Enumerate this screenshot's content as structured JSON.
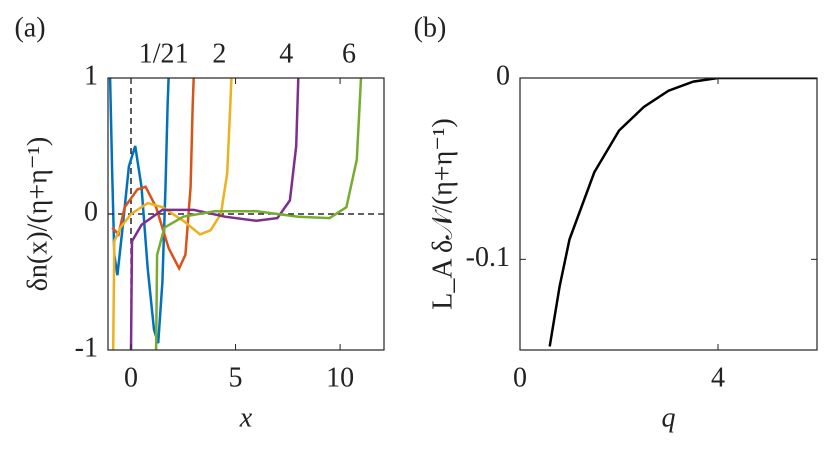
{
  "chart_data": [
    {
      "type": "line",
      "panel_label": "(a)",
      "x_label": "x",
      "y_label": "δn(x)/(η+η⁻¹)",
      "xlim": [
        -1.1,
        12.1
      ],
      "ylim": [
        -1,
        1
      ],
      "xticks": [
        0,
        5,
        10
      ],
      "yticks": [
        -1,
        0,
        1
      ],
      "hlines": [
        0
      ],
      "vlines": [
        0
      ],
      "series": [
        {
          "name": "1/2",
          "color": "#0072bd",
          "x": [
            -1.0,
            -0.9,
            -0.8,
            -0.65,
            -0.4,
            -0.1,
            0.2,
            0.5,
            0.8,
            1.1,
            1.3,
            1.5,
            1.65,
            1.75,
            1.8
          ],
          "values": [
            1,
            0.3,
            -0.3,
            -0.45,
            -0.1,
            0.35,
            0.5,
            0.2,
            -0.4,
            -0.85,
            -0.95,
            -0.5,
            0.2,
            0.8,
            1
          ]
        },
        {
          "name": "1",
          "color": "#d95319",
          "x": [
            -0.9,
            -0.6,
            -0.3,
            0.3,
            0.7,
            1.2,
            1.8,
            2.3,
            2.6,
            2.85,
            2.95,
            3.0
          ],
          "values": [
            -0.1,
            -0.15,
            0.05,
            0.18,
            0.2,
            0.05,
            -0.25,
            -0.4,
            -0.3,
            0.2,
            0.8,
            1
          ]
        },
        {
          "name": "2",
          "color": "#edb120",
          "x": [
            -0.85,
            -0.8,
            -0.5,
            0,
            0.8,
            1.5,
            2.5,
            3.3,
            3.8,
            4.3,
            4.6,
            4.75,
            4.8
          ],
          "values": [
            -1,
            -0.2,
            -0.1,
            0,
            0.08,
            0.05,
            -0.05,
            -0.15,
            -0.12,
            0,
            0.3,
            0.8,
            1
          ]
        },
        {
          "name": "4",
          "color": "#7e2f8e",
          "x": [
            0,
            0.05,
            0.5,
            1.5,
            3,
            4.5,
            6,
            7.0,
            7.6,
            7.9,
            8.0
          ],
          "values": [
            -1,
            -0.2,
            -0.08,
            0.03,
            0.03,
            -0.02,
            -0.05,
            -0.03,
            0.1,
            0.5,
            1
          ]
        },
        {
          "name": "6",
          "color": "#77ac30",
          "x": [
            1.2,
            1.25,
            1.6,
            2.5,
            4,
            6,
            8,
            9.5,
            10.3,
            10.8,
            11.0
          ],
          "values": [
            -1,
            -0.3,
            -0.1,
            -0.02,
            0.02,
            0.02,
            -0.02,
            -0.03,
            0.05,
            0.4,
            1
          ]
        }
      ]
    },
    {
      "type": "line",
      "panel_label": "(b)",
      "x_label": "q",
      "y_label": "L_A δ𝒩/(η+η⁻¹)",
      "xlim": [
        0,
        6
      ],
      "ylim": [
        -0.15,
        0
      ],
      "xticks": [
        0,
        4
      ],
      "yticks": [
        -0.1,
        0
      ],
      "series": [
        {
          "color": "#000000",
          "x": [
            0.6,
            0.8,
            1,
            1.5,
            2,
            2.5,
            3,
            3.5,
            4,
            5,
            6
          ],
          "values": [
            -0.148,
            -0.115,
            -0.089,
            -0.052,
            -0.029,
            -0.016,
            -0.007,
            -0.002,
            0,
            0,
            0
          ]
        }
      ]
    }
  ]
}
